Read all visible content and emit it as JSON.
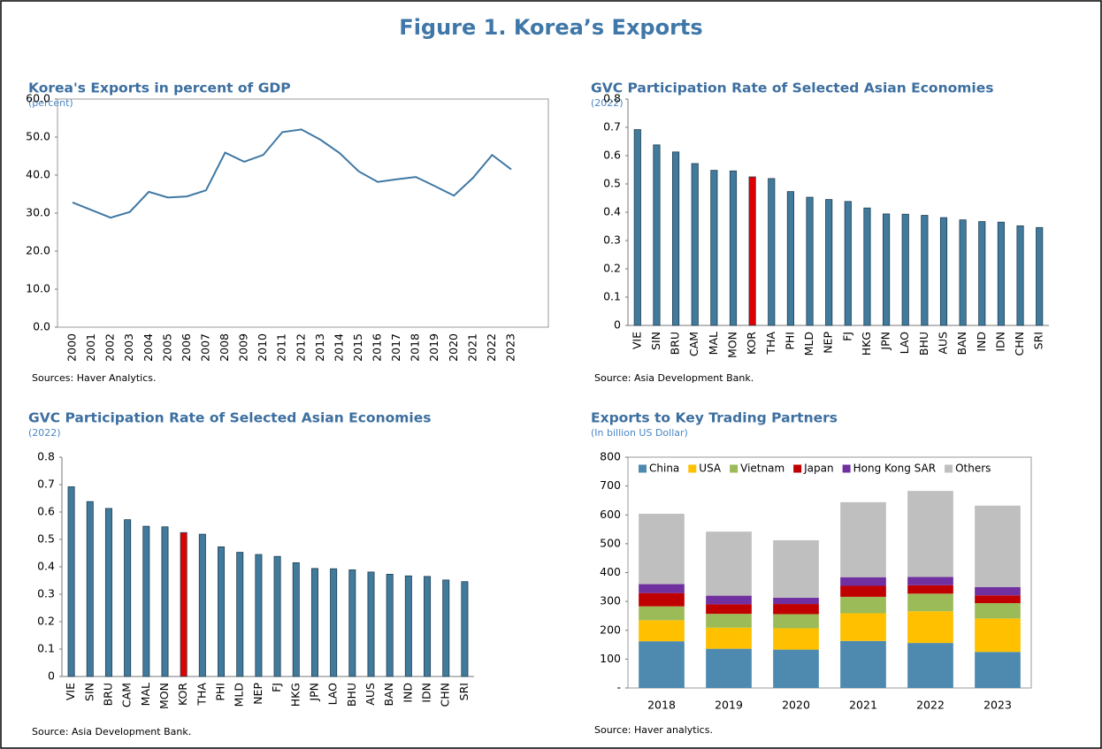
{
  "title": "Figure 1. Korea’s Exports",
  "chart_data": [
    {
      "type": "line",
      "title": "Korea's Exports in percent of GDP",
      "subtitle": "(percent)",
      "source": "Sources: Haver Analytics.",
      "categories": [
        "2000",
        "2001",
        "2002",
        "2003",
        "2004",
        "2005",
        "2006",
        "2007",
        "2008",
        "2009",
        "2010",
        "2011",
        "2012",
        "2013",
        "2014",
        "2015",
        "2016",
        "2017",
        "2018",
        "2019",
        "2020",
        "2021",
        "2022",
        "2023"
      ],
      "values": [
        32.8,
        30.8,
        28.8,
        30.3,
        35.6,
        34.1,
        34.4,
        36.0,
        45.9,
        43.5,
        45.3,
        51.3,
        52.0,
        49.3,
        45.8,
        41.0,
        38.2,
        38.9,
        39.5,
        37.1,
        34.6,
        39.3,
        45.3,
        41.5
      ],
      "color": "#3f78a4",
      "ylim": [
        0,
        60
      ],
      "yticks": [
        {
          "value": 0,
          "label": "0.0"
        },
        {
          "value": 10,
          "label": "10.0"
        },
        {
          "value": 20,
          "label": "20.0"
        },
        {
          "value": 30,
          "label": "30.0"
        },
        {
          "value": 40,
          "label": "40.0"
        },
        {
          "value": 50,
          "label": "50.0"
        },
        {
          "value": 60,
          "label": "60.0"
        }
      ]
    },
    {
      "type": "bar",
      "title": "GVC Participation Rate of Selected Asian Economies",
      "subtitle": "(2022)",
      "source": "Source: Asia Development Bank.",
      "categories": [
        "VIE",
        "SIN",
        "BRU",
        "CAM",
        "MAL",
        "MON",
        "KOR",
        "THA",
        "PHI",
        "MLD",
        "NEP",
        "FJ",
        "HKG",
        "JPN",
        "LAO",
        "BHU",
        "AUS",
        "BAN",
        "IND",
        "IDN",
        "CHN",
        "SRI"
      ],
      "values": [
        0.692,
        0.638,
        0.613,
        0.572,
        0.548,
        0.546,
        0.525,
        0.519,
        0.473,
        0.453,
        0.445,
        0.438,
        0.415,
        0.394,
        0.393,
        0.389,
        0.381,
        0.373,
        0.367,
        0.365,
        0.352,
        0.346
      ],
      "colors": [
        "#417a9b",
        "#417a9b",
        "#417a9b",
        "#417a9b",
        "#417a9b",
        "#417a9b",
        "#e00000",
        "#417a9b",
        "#417a9b",
        "#417a9b",
        "#417a9b",
        "#417a9b",
        "#417a9b",
        "#417a9b",
        "#417a9b",
        "#417a9b",
        "#417a9b",
        "#417a9b",
        "#417a9b",
        "#417a9b",
        "#417a9b",
        "#417a9b"
      ],
      "ylim": [
        0,
        0.8
      ],
      "yticks": [
        0,
        0.1,
        0.2,
        0.3,
        0.4,
        0.5,
        0.6,
        0.7,
        0.8
      ]
    },
    {
      "type": "bar",
      "title": "GVC Participation Rate of Selected Asian Economies",
      "subtitle": "(2022)",
      "source": "Source: Asia Development Bank.",
      "categories": [
        "VIE",
        "SIN",
        "BRU",
        "CAM",
        "MAL",
        "MON",
        "KOR",
        "THA",
        "PHI",
        "MLD",
        "NEP",
        "FJ",
        "HKG",
        "JPN",
        "LAO",
        "BHU",
        "AUS",
        "BAN",
        "IND",
        "IDN",
        "CHN",
        "SRI"
      ],
      "values": [
        0.692,
        0.638,
        0.613,
        0.572,
        0.548,
        0.546,
        0.525,
        0.519,
        0.473,
        0.453,
        0.445,
        0.438,
        0.415,
        0.394,
        0.393,
        0.389,
        0.381,
        0.373,
        0.367,
        0.365,
        0.352,
        0.346
      ],
      "colors": [
        "#417a9b",
        "#417a9b",
        "#417a9b",
        "#417a9b",
        "#417a9b",
        "#417a9b",
        "#e00000",
        "#417a9b",
        "#417a9b",
        "#417a9b",
        "#417a9b",
        "#417a9b",
        "#417a9b",
        "#417a9b",
        "#417a9b",
        "#417a9b",
        "#417a9b",
        "#417a9b",
        "#417a9b",
        "#417a9b",
        "#417a9b",
        "#417a9b"
      ],
      "ylim": [
        0,
        0.8
      ],
      "yticks": [
        0,
        0.1,
        0.2,
        0.3,
        0.4,
        0.5,
        0.6,
        0.7,
        0.8
      ]
    },
    {
      "type": "stacked_bar",
      "title": "Exports to Key Trading Partners",
      "subtitle": "(In billion US Dollar)",
      "source": "Source: Haver analytics.",
      "categories": [
        "2018",
        "2019",
        "2020",
        "2021",
        "2022",
        "2023"
      ],
      "series": [
        {
          "name": "China",
          "color": "#4e8ab0",
          "values": [
            162,
            136,
            133,
            163,
            156,
            125
          ]
        },
        {
          "name": "USA",
          "color": "#ffc000",
          "values": [
            73,
            73,
            74,
            96,
            110,
            116
          ]
        },
        {
          "name": "Vietnam",
          "color": "#9bbb59",
          "values": [
            48,
            48,
            49,
            57,
            61,
            53
          ]
        },
        {
          "name": "Japan",
          "color": "#c00000",
          "values": [
            46,
            33,
            35,
            38,
            29,
            27
          ]
        },
        {
          "name": "Hong Kong SAR",
          "color": "#7030a0",
          "values": [
            31,
            30,
            22,
            30,
            29,
            29
          ]
        },
        {
          "name": "Others",
          "color": "#bfbfbf",
          "values": [
            244,
            222,
            199,
            260,
            298,
            282
          ]
        }
      ],
      "legend": "top",
      "ylim": [
        0,
        800
      ],
      "yticks": [
        {
          "value": 0,
          "label": "-"
        },
        100,
        200,
        300,
        400,
        500,
        600,
        700,
        800
      ]
    }
  ]
}
